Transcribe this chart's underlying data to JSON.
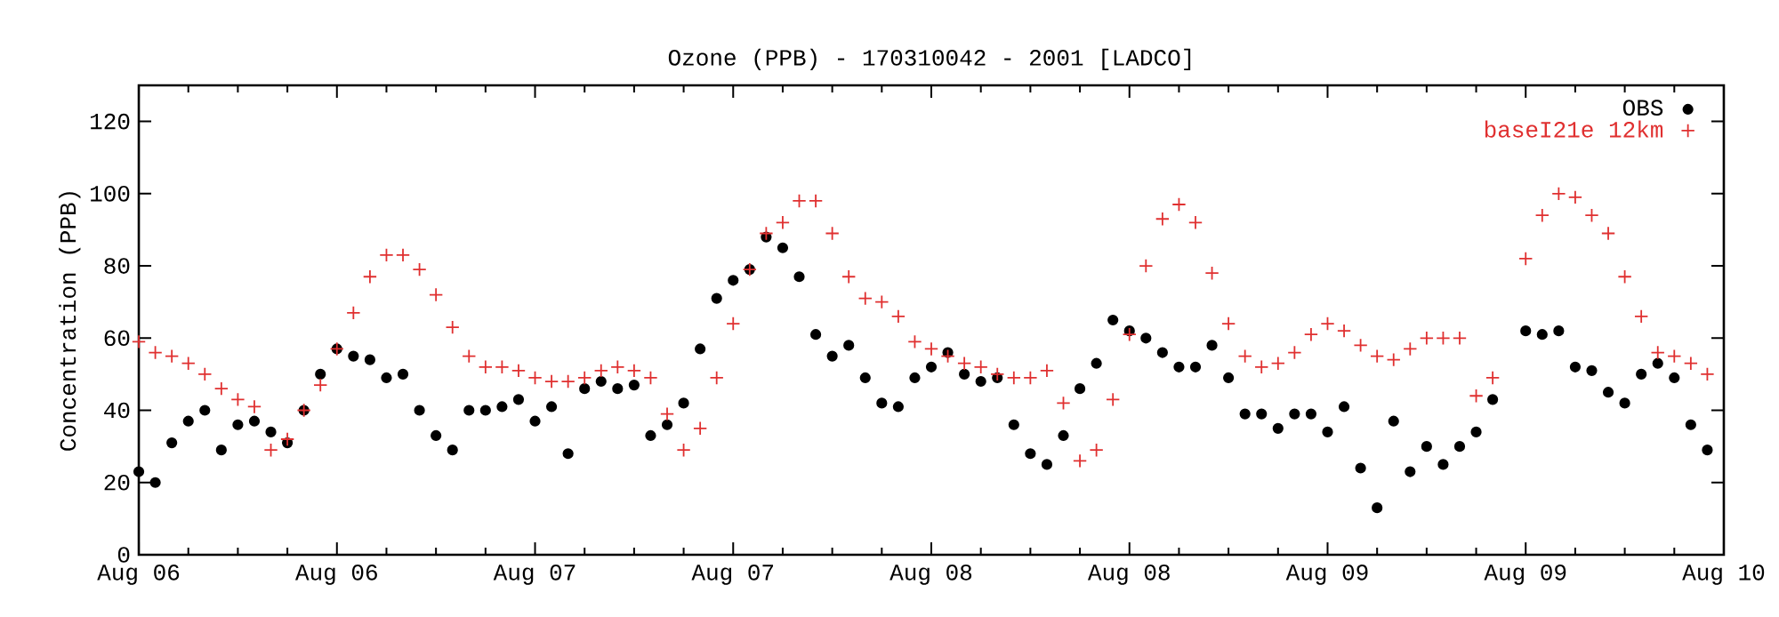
{
  "chart_data": {
    "type": "scatter",
    "title": "Ozone (PPB) - 170310042 - 2001 [LADCO]",
    "ylabel": "Concentration (PPB)",
    "x": [
      "2001-08-06T00:00",
      "2001-08-06T01:00",
      "2001-08-06T02:00",
      "2001-08-06T03:00",
      "2001-08-06T04:00",
      "2001-08-06T05:00",
      "2001-08-06T06:00",
      "2001-08-06T07:00",
      "2001-08-06T08:00",
      "2001-08-06T09:00",
      "2001-08-06T10:00",
      "2001-08-06T11:00",
      "2001-08-06T12:00",
      "2001-08-06T13:00",
      "2001-08-06T14:00",
      "2001-08-06T15:00",
      "2001-08-06T16:00",
      "2001-08-06T17:00",
      "2001-08-06T18:00",
      "2001-08-06T19:00",
      "2001-08-06T20:00",
      "2001-08-06T21:00",
      "2001-08-06T22:00",
      "2001-08-06T23:00",
      "2001-08-07T00:00",
      "2001-08-07T01:00",
      "2001-08-07T02:00",
      "2001-08-07T03:00",
      "2001-08-07T04:00",
      "2001-08-07T05:00",
      "2001-08-07T06:00",
      "2001-08-07T07:00",
      "2001-08-07T08:00",
      "2001-08-07T09:00",
      "2001-08-07T10:00",
      "2001-08-07T11:00",
      "2001-08-07T12:00",
      "2001-08-07T13:00",
      "2001-08-07T14:00",
      "2001-08-07T15:00",
      "2001-08-07T16:00",
      "2001-08-07T17:00",
      "2001-08-07T18:00",
      "2001-08-07T19:00",
      "2001-08-07T20:00",
      "2001-08-07T21:00",
      "2001-08-07T22:00",
      "2001-08-07T23:00",
      "2001-08-08T00:00",
      "2001-08-08T01:00",
      "2001-08-08T02:00",
      "2001-08-08T03:00",
      "2001-08-08T04:00",
      "2001-08-08T05:00",
      "2001-08-08T06:00",
      "2001-08-08T07:00",
      "2001-08-08T08:00",
      "2001-08-08T09:00",
      "2001-08-08T10:00",
      "2001-08-08T11:00",
      "2001-08-08T12:00",
      "2001-08-08T13:00",
      "2001-08-08T14:00",
      "2001-08-08T15:00",
      "2001-08-08T16:00",
      "2001-08-08T17:00",
      "2001-08-08T18:00",
      "2001-08-08T19:00",
      "2001-08-08T20:00",
      "2001-08-08T21:00",
      "2001-08-08T22:00",
      "2001-08-08T23:00",
      "2001-08-09T00:00",
      "2001-08-09T01:00",
      "2001-08-09T02:00",
      "2001-08-09T03:00",
      "2001-08-09T04:00",
      "2001-08-09T05:00",
      "2001-08-09T06:00",
      "2001-08-09T07:00",
      "2001-08-09T08:00",
      "2001-08-09T09:00",
      "2001-08-09T10:00",
      "2001-08-09T11:00",
      "2001-08-09T12:00",
      "2001-08-09T13:00",
      "2001-08-09T14:00",
      "2001-08-09T15:00",
      "2001-08-09T16:00",
      "2001-08-09T17:00",
      "2001-08-09T18:00",
      "2001-08-09T19:00",
      "2001-08-09T20:00",
      "2001-08-09T21:00",
      "2001-08-09T22:00",
      "2001-08-09T23:00"
    ],
    "series": [
      {
        "name": "OBS",
        "color": "#000000",
        "marker": "circle",
        "values": [
          23,
          20,
          31,
          37,
          40,
          29,
          36,
          37,
          34,
          31,
          40,
          50,
          57,
          55,
          54,
          49,
          50,
          40,
          33,
          29,
          40,
          40,
          41,
          43,
          37,
          41,
          28,
          46,
          48,
          46,
          47,
          33,
          36,
          42,
          57,
          71,
          76,
          79,
          88,
          85,
          77,
          61,
          55,
          58,
          49,
          42,
          41,
          49,
          52,
          56,
          50,
          48,
          49,
          36,
          28,
          25,
          33,
          46,
          53,
          65,
          62,
          60,
          56,
          52,
          52,
          58,
          49,
          39,
          39,
          35,
          39,
          39,
          34,
          41,
          24,
          13,
          37,
          23,
          30,
          25,
          30,
          34,
          43,
          null,
          62,
          61,
          62,
          52,
          51,
          45,
          42,
          50,
          53,
          49,
          36,
          29
        ]
      },
      {
        "name": "baseI21e 12km",
        "color": "#e03030",
        "marker": "cross",
        "values": [
          59,
          56,
          55,
          53,
          50,
          46,
          43,
          41,
          29,
          32,
          40,
          47,
          57,
          67,
          77,
          83,
          83,
          79,
          72,
          63,
          55,
          52,
          52,
          51,
          49,
          48,
          48,
          49,
          51,
          52,
          51,
          49,
          39,
          29,
          35,
          49,
          64,
          79,
          89,
          92,
          98,
          98,
          89,
          77,
          71,
          70,
          66,
          59,
          57,
          55,
          53,
          52,
          50,
          49,
          49,
          51,
          42,
          26,
          29,
          43,
          61,
          80,
          93,
          97,
          92,
          78,
          64,
          55,
          52,
          53,
          56,
          61,
          64,
          62,
          58,
          55,
          54,
          57,
          60,
          60,
          60,
          44,
          49,
          null,
          82,
          94,
          100,
          99,
          94,
          89,
          77,
          66,
          56,
          55,
          53,
          50
        ]
      }
    ],
    "xlim": [
      "2001-08-06T00:00",
      "2001-08-10T00:00"
    ],
    "ylim": [
      0,
      130
    ],
    "xticks": [
      {
        "value": "2001-08-06T00:00",
        "label": "Aug 06"
      },
      {
        "value": "2001-08-06T12:00",
        "label": "Aug 06"
      },
      {
        "value": "2001-08-07T00:00",
        "label": "Aug 07"
      },
      {
        "value": "2001-08-07T12:00",
        "label": "Aug 07"
      },
      {
        "value": "2001-08-08T00:00",
        "label": "Aug 08"
      },
      {
        "value": "2001-08-08T12:00",
        "label": "Aug 08"
      },
      {
        "value": "2001-08-09T00:00",
        "label": "Aug 09"
      },
      {
        "value": "2001-08-09T12:00",
        "label": "Aug 09"
      },
      {
        "value": "2001-08-10T00:00",
        "label": "Aug 10"
      }
    ],
    "yticks": [
      0,
      20,
      40,
      60,
      80,
      100,
      120
    ],
    "legend": "top right"
  }
}
